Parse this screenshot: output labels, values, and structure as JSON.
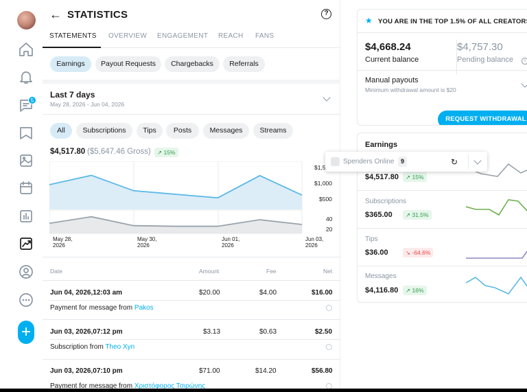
{
  "sidebar": {
    "messages_badge": "5",
    "fab_label": "+"
  },
  "header": {
    "back_label": "←",
    "title": "STATISTICS",
    "help_label": "?"
  },
  "tabs": [
    "STATEMENTS",
    "OVERVIEW",
    "ENGAGEMENT",
    "REACH",
    "FANS"
  ],
  "statement_filters": [
    "Earnings",
    "Payout Requests",
    "Chargebacks",
    "Referrals"
  ],
  "period": {
    "label": "Last 7 days",
    "range": "May 28, 2026 - Jun 04, 2026"
  },
  "type_filters": [
    "All",
    "Subscriptions",
    "Tips",
    "Posts",
    "Messages",
    "Streams"
  ],
  "summary": {
    "net": "$4,517.80",
    "gross": "($5,647.46 Gross)",
    "change": "↗ 15%"
  },
  "chart_data": {
    "type": "area",
    "x": [
      "May 28, 2026",
      "May 29, 2026",
      "May 30, 2026",
      "May 31, 2026",
      "Jun 01, 2026",
      "Jun 02, 2026",
      "Jun 03, 2026"
    ],
    "x_tick_labels": [
      [
        "May 28,",
        "2026"
      ],
      [
        "May 30,",
        "2026"
      ],
      [
        "Jun 01,",
        "2026"
      ],
      [
        "Jun 03,",
        "2026"
      ]
    ],
    "series": [
      {
        "values": [
          900,
          1240,
          680,
          550,
          420,
          1230,
          520
        ],
        "color": "#5bb8e6",
        "ylim": [
          0,
          1750
        ]
      },
      {
        "values": [
          27,
          38,
          23,
          22,
          22,
          33,
          25
        ],
        "color": "#9aa3ac",
        "ylim": [
          10,
          48
        ]
      }
    ],
    "y_tick_labels_top": [
      "$1,5",
      "$1,000",
      "$500"
    ],
    "y_tick_labels_bottom": [
      "40",
      "20"
    ]
  },
  "table": {
    "headers": [
      "Date",
      "Amount",
      "Fee",
      "Net"
    ],
    "rows": [
      {
        "date": "Jun 04, 2026,12:03 am",
        "amount": "$20.00",
        "fee": "$4.00",
        "net": "$16.00",
        "desc": "Payment for message from ",
        "who": "Pakos"
      },
      {
        "date": "Jun 03, 2026,07:12 pm",
        "amount": "$3.13",
        "fee": "$0.63",
        "net": "$2.50",
        "desc": "Subscription from ",
        "who": "Theo Xyn"
      },
      {
        "date": "Jun 03, 2026,07:10 pm",
        "amount": "$71.00",
        "fee": "$14.20",
        "net": "$56.80",
        "desc": "Payment for message from ",
        "who": "Χριστόφορος Τσιρώνης"
      }
    ]
  },
  "right": {
    "banner": "YOU ARE IN THE TOP 1.5% OF ALL CREATORS!",
    "current_balance": "$4,668.24",
    "current_label": "Current balance",
    "pending_balance": "$4,757.30",
    "pending_label": "Pending balance",
    "info_label": "i",
    "payouts_title": "Manual payouts",
    "payouts_sub": "Minimum withdrawal amount is $20",
    "request_button": "REQUEST WITHDRAWAL",
    "earnings_title": "Earnings",
    "earnings": [
      {
        "label": "Total",
        "value": "$4,517.80",
        "change": "↗ 15%",
        "dir": "up"
      },
      {
        "label": "Subscriptions",
        "value": "$365.00",
        "change": "↗ 31.5%",
        "dir": "up"
      },
      {
        "label": "Tips",
        "value": "$36.00",
        "change": "↘ -64.6%",
        "dir": "down"
      },
      {
        "label": "Messages",
        "value": "$4,116.80",
        "change": "↗ 16%",
        "dir": "up"
      }
    ]
  },
  "popup": {
    "label": "Spenders Online",
    "count": "9"
  }
}
